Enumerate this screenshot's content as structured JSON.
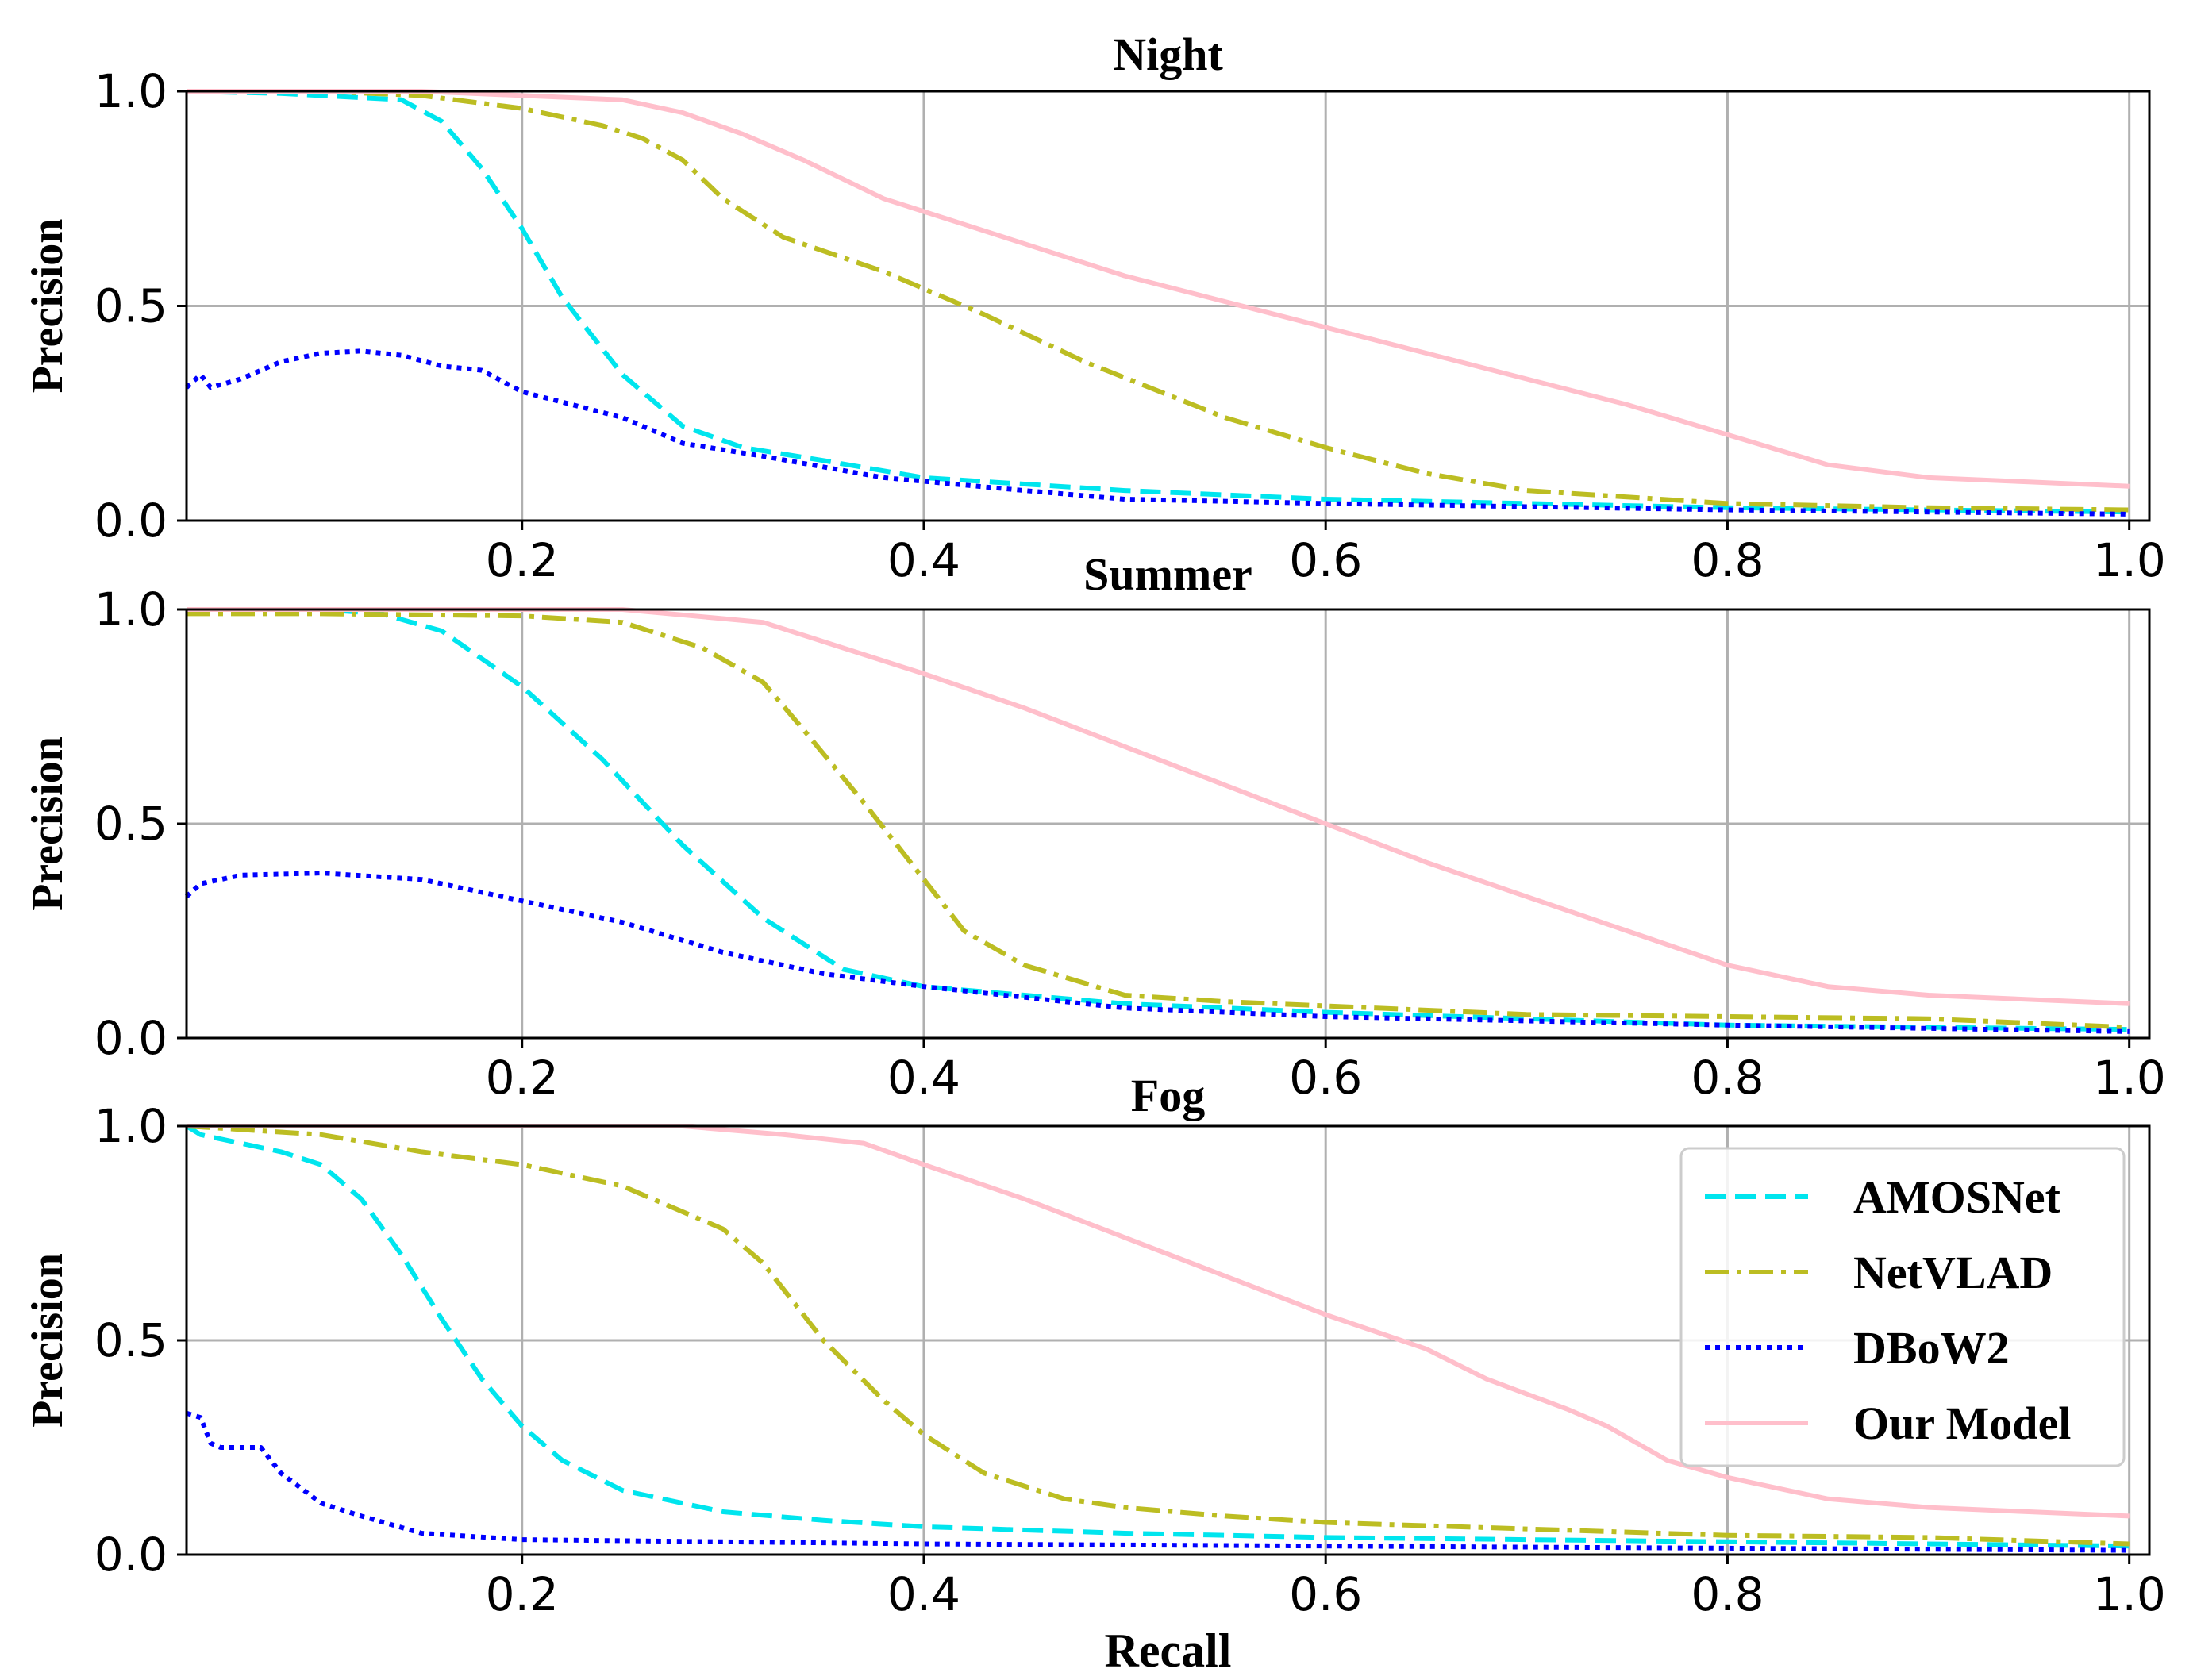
{
  "chart_data": [
    {
      "type": "line",
      "title": "Night",
      "xlabel": "",
      "ylabel": "Precision",
      "xlim": [
        0.033,
        1.01
      ],
      "ylim": [
        0.0,
        1.0
      ],
      "xticks": [
        "0.2",
        "0.4",
        "0.6",
        "0.8",
        "1.0"
      ],
      "yticks": [
        "0.0",
        "0.5",
        "1.0"
      ],
      "grid": true,
      "series": [
        {
          "name": "AMOSNet",
          "x": [
            0.033,
            0.08,
            0.14,
            0.16,
            0.18,
            0.2,
            0.22,
            0.25,
            0.28,
            0.31,
            0.35,
            0.4,
            0.5,
            0.6,
            0.8,
            1.0
          ],
          "y": [
            1.0,
            0.995,
            0.98,
            0.93,
            0.82,
            0.68,
            0.52,
            0.34,
            0.22,
            0.17,
            0.14,
            0.1,
            0.07,
            0.05,
            0.03,
            0.02
          ]
        },
        {
          "name": "NetVLAD",
          "x": [
            0.033,
            0.1,
            0.15,
            0.2,
            0.24,
            0.26,
            0.28,
            0.3,
            0.33,
            0.38,
            0.43,
            0.48,
            0.55,
            0.6,
            0.65,
            0.7,
            0.8,
            0.9,
            1.0
          ],
          "y": [
            1.0,
            1.0,
            0.99,
            0.96,
            0.92,
            0.89,
            0.84,
            0.75,
            0.66,
            0.58,
            0.48,
            0.37,
            0.24,
            0.17,
            0.11,
            0.07,
            0.04,
            0.03,
            0.025
          ]
        },
        {
          "name": "DBoW2",
          "x": [
            0.033,
            0.04,
            0.045,
            0.06,
            0.08,
            0.1,
            0.12,
            0.14,
            0.16,
            0.18,
            0.2,
            0.25,
            0.28,
            0.32,
            0.38,
            0.45,
            0.5,
            0.6,
            0.8,
            1.0
          ],
          "y": [
            0.31,
            0.34,
            0.31,
            0.33,
            0.37,
            0.39,
            0.395,
            0.385,
            0.36,
            0.35,
            0.3,
            0.24,
            0.18,
            0.15,
            0.1,
            0.07,
            0.05,
            0.04,
            0.025,
            0.015
          ]
        },
        {
          "name": "Our Model",
          "x": [
            0.033,
            0.15,
            0.25,
            0.28,
            0.31,
            0.34,
            0.38,
            0.42,
            0.46,
            0.5,
            0.55,
            0.6,
            0.65,
            0.7,
            0.75,
            0.8,
            0.85,
            0.9,
            0.95,
            1.0
          ],
          "y": [
            1.0,
            1.0,
            0.98,
            0.95,
            0.9,
            0.84,
            0.75,
            0.69,
            0.63,
            0.57,
            0.51,
            0.45,
            0.39,
            0.33,
            0.27,
            0.2,
            0.13,
            0.1,
            0.09,
            0.08
          ]
        }
      ]
    },
    {
      "type": "line",
      "title": "Summer",
      "xlabel": "",
      "ylabel": "Precision",
      "xlim": [
        0.033,
        1.01
      ],
      "ylim": [
        0.0,
        1.0
      ],
      "xticks": [
        "0.2",
        "0.4",
        "0.6",
        "0.8",
        "1.0"
      ],
      "yticks": [
        "0.0",
        "0.5",
        "1.0"
      ],
      "grid": true,
      "series": [
        {
          "name": "AMOSNet",
          "x": [
            0.033,
            0.1,
            0.13,
            0.16,
            0.2,
            0.24,
            0.28,
            0.32,
            0.36,
            0.4,
            0.5,
            0.6,
            0.8,
            1.0
          ],
          "y": [
            1.0,
            1.0,
            0.99,
            0.95,
            0.82,
            0.65,
            0.45,
            0.28,
            0.16,
            0.12,
            0.08,
            0.06,
            0.03,
            0.02
          ]
        },
        {
          "name": "NetVLAD",
          "x": [
            0.033,
            0.1,
            0.2,
            0.25,
            0.29,
            0.32,
            0.34,
            0.37,
            0.4,
            0.42,
            0.45,
            0.5,
            0.55,
            0.6,
            0.7,
            0.8,
            0.9,
            1.0
          ],
          "y": [
            0.99,
            0.99,
            0.985,
            0.97,
            0.91,
            0.83,
            0.72,
            0.55,
            0.37,
            0.25,
            0.17,
            0.1,
            0.085,
            0.075,
            0.055,
            0.05,
            0.045,
            0.025
          ]
        },
        {
          "name": "DBoW2",
          "x": [
            0.033,
            0.04,
            0.06,
            0.1,
            0.15,
            0.2,
            0.25,
            0.3,
            0.35,
            0.4,
            0.5,
            0.6,
            0.8,
            1.0
          ],
          "y": [
            0.33,
            0.36,
            0.38,
            0.385,
            0.37,
            0.32,
            0.27,
            0.2,
            0.15,
            0.12,
            0.07,
            0.05,
            0.03,
            0.015
          ]
        },
        {
          "name": "Our Model",
          "x": [
            0.033,
            0.25,
            0.32,
            0.36,
            0.4,
            0.45,
            0.5,
            0.55,
            0.6,
            0.65,
            0.7,
            0.75,
            0.8,
            0.85,
            0.9,
            1.0
          ],
          "y": [
            1.0,
            1.0,
            0.97,
            0.91,
            0.85,
            0.77,
            0.68,
            0.59,
            0.5,
            0.41,
            0.33,
            0.25,
            0.17,
            0.12,
            0.1,
            0.08
          ]
        }
      ]
    },
    {
      "type": "line",
      "title": "Fog",
      "xlabel": "Recall",
      "ylabel": "Precision",
      "xlim": [
        0.033,
        1.01
      ],
      "ylim": [
        0.0,
        1.0
      ],
      "xticks": [
        "0.2",
        "0.4",
        "0.6",
        "0.8",
        "1.0"
      ],
      "yticks": [
        "0.0",
        "0.5",
        "1.0"
      ],
      "grid": true,
      "series": [
        {
          "name": "AMOSNet",
          "x": [
            0.033,
            0.04,
            0.06,
            0.08,
            0.1,
            0.12,
            0.14,
            0.16,
            0.18,
            0.2,
            0.22,
            0.25,
            0.3,
            0.35,
            0.4,
            0.5,
            0.6,
            0.8,
            1.0
          ],
          "y": [
            1.0,
            0.98,
            0.96,
            0.94,
            0.91,
            0.83,
            0.7,
            0.55,
            0.41,
            0.3,
            0.22,
            0.15,
            0.1,
            0.08,
            0.065,
            0.05,
            0.04,
            0.03,
            0.02
          ]
        },
        {
          "name": "NetVLAD",
          "x": [
            0.033,
            0.1,
            0.15,
            0.2,
            0.25,
            0.3,
            0.32,
            0.35,
            0.38,
            0.4,
            0.43,
            0.47,
            0.5,
            0.55,
            0.6,
            0.7,
            0.8,
            0.9,
            1.0
          ],
          "y": [
            1.0,
            0.98,
            0.94,
            0.91,
            0.86,
            0.76,
            0.68,
            0.5,
            0.36,
            0.28,
            0.19,
            0.13,
            0.11,
            0.09,
            0.075,
            0.06,
            0.045,
            0.04,
            0.025
          ]
        },
        {
          "name": "DBoW2",
          "x": [
            0.033,
            0.04,
            0.045,
            0.05,
            0.07,
            0.08,
            0.1,
            0.12,
            0.15,
            0.2,
            0.3,
            0.4,
            0.6,
            0.8,
            1.0
          ],
          "y": [
            0.33,
            0.32,
            0.26,
            0.25,
            0.25,
            0.19,
            0.12,
            0.09,
            0.05,
            0.035,
            0.03,
            0.025,
            0.02,
            0.015,
            0.01
          ]
        },
        {
          "name": "Our Model",
          "x": [
            0.033,
            0.28,
            0.33,
            0.37,
            0.4,
            0.45,
            0.5,
            0.55,
            0.6,
            0.65,
            0.68,
            0.72,
            0.74,
            0.77,
            0.8,
            0.85,
            0.9,
            0.95,
            1.0
          ],
          "y": [
            1.0,
            1.0,
            0.98,
            0.96,
            0.91,
            0.83,
            0.74,
            0.65,
            0.56,
            0.48,
            0.41,
            0.34,
            0.3,
            0.22,
            0.18,
            0.13,
            0.11,
            0.1,
            0.09
          ]
        }
      ]
    }
  ],
  "legend": {
    "position": "right, inside Fog panel",
    "entries": [
      {
        "label": "AMOSNet",
        "color": "#00e5ee",
        "dash": "dashed"
      },
      {
        "label": "NetVLAD",
        "color": "#bcbd22",
        "dash": "dashdot"
      },
      {
        "label": "DBoW2",
        "color": "#0000ff",
        "dash": "dotted"
      },
      {
        "label": "Our Model",
        "color": "#ffbfcb",
        "dash": "solid"
      }
    ]
  },
  "series_styles": {
    "AMOSNet": {
      "color": "#00e5ee",
      "dash": "dashed"
    },
    "NetVLAD": {
      "color": "#bcbd22",
      "dash": "dashdot"
    },
    "DBoW2": {
      "color": "#0000ff",
      "dash": "dotted"
    },
    "Our Model": {
      "color": "#ffbfcb",
      "dash": "solid"
    }
  }
}
